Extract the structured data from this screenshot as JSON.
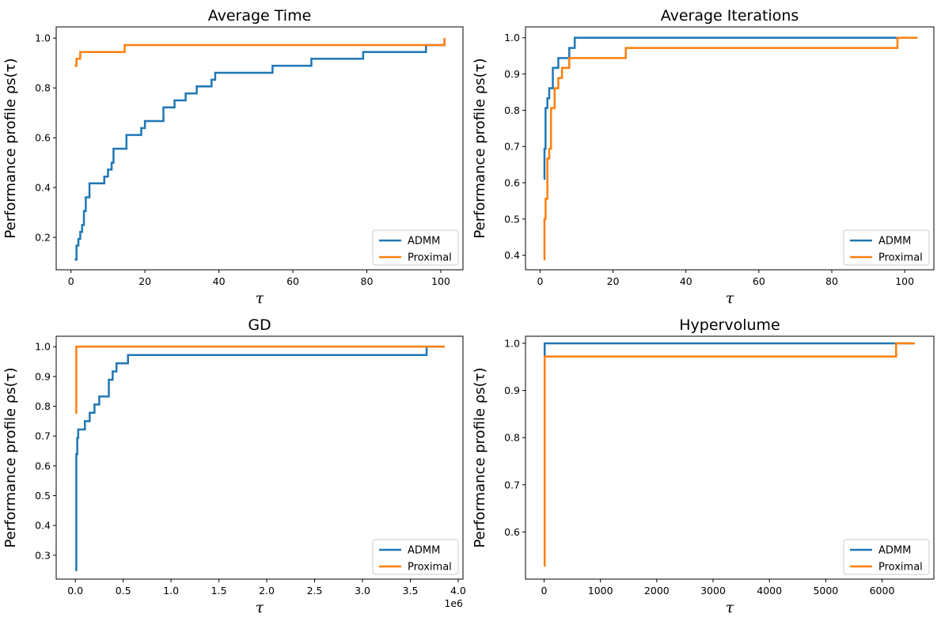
{
  "chart_data": [
    {
      "type": "line",
      "title": "Average Time",
      "ylabel": "Performance profile ρs(τ)",
      "xlabel": "τ",
      "xlim": [
        -4,
        106
      ],
      "ylim": [
        0.07,
        1.045
      ],
      "xticks": [
        0,
        20,
        40,
        60,
        80,
        100
      ],
      "xtick_labels": [
        "0",
        "20",
        "40",
        "60",
        "80",
        "100"
      ],
      "yticks": [
        0.2,
        0.4,
        0.6,
        0.8,
        1.0
      ],
      "ytick_labels": [
        "0.2",
        "0.4",
        "0.6",
        "0.8",
        "1.0"
      ],
      "offset_label": "",
      "grid": false,
      "legend": {
        "placement": "lower-right",
        "entries": [
          "ADMM",
          "Proximal"
        ]
      },
      "series": [
        {
          "name": "ADMM",
          "color": "#1f77b4",
          "step": true,
          "x": [
            1.0,
            1.5,
            2.0,
            2.5,
            3.0,
            3.5,
            4.0,
            5.0,
            9.0,
            10.0,
            11.0,
            11.5,
            15.0,
            19.0,
            20.0,
            25.0,
            28.0,
            31.0,
            34.0,
            38.0,
            39.0,
            54.5,
            65.0,
            79.0,
            96.0,
            101.0
          ],
          "y": [
            0.111,
            0.167,
            0.194,
            0.222,
            0.25,
            0.306,
            0.361,
            0.417,
            0.444,
            0.472,
            0.5,
            0.556,
            0.611,
            0.639,
            0.667,
            0.722,
            0.75,
            0.778,
            0.806,
            0.833,
            0.861,
            0.889,
            0.917,
            0.944,
            0.972,
            1.0
          ]
        },
        {
          "name": "Proximal",
          "color": "#ff7f0e",
          "step": true,
          "x": [
            1.0,
            1.5,
            2.5,
            14.5,
            101.0
          ],
          "y": [
            0.889,
            0.917,
            0.944,
            0.972,
            1.0
          ]
        }
      ]
    },
    {
      "type": "line",
      "title": "Average Iterations",
      "ylabel": "Performance profile ρs(τ)",
      "xlabel": "τ",
      "xlim": [
        -4,
        108
      ],
      "ylim": [
        0.36,
        1.03
      ],
      "xticks": [
        0,
        20,
        40,
        60,
        80,
        100
      ],
      "xtick_labels": [
        "0",
        "20",
        "40",
        "60",
        "80",
        "100"
      ],
      "yticks": [
        0.4,
        0.5,
        0.6,
        0.7,
        0.8,
        0.9,
        1.0
      ],
      "ytick_labels": [
        "0.4",
        "0.5",
        "0.6",
        "0.7",
        "0.8",
        "0.9",
        "1.0"
      ],
      "offset_label": "",
      "grid": false,
      "legend": {
        "placement": "lower-right",
        "entries": [
          "ADMM",
          "Proximal"
        ]
      },
      "series": [
        {
          "name": "ADMM",
          "color": "#1f77b4",
          "step": true,
          "x": [
            1.0,
            1.2,
            1.5,
            2.0,
            2.5,
            3.5,
            5.0,
            8.0,
            9.5,
            98.0,
            103.5
          ],
          "y": [
            0.611,
            0.694,
            0.806,
            0.833,
            0.861,
            0.917,
            0.944,
            0.972,
            1.0,
            1.0,
            1.0
          ]
        },
        {
          "name": "Proximal",
          "color": "#ff7f0e",
          "step": true,
          "x": [
            1.0,
            1.2,
            1.5,
            2.0,
            2.5,
            3.0,
            4.0,
            5.0,
            6.0,
            8.0,
            23.5,
            98.0,
            103.5
          ],
          "y": [
            0.389,
            0.5,
            0.556,
            0.667,
            0.694,
            0.806,
            0.861,
            0.889,
            0.917,
            0.944,
            0.972,
            1.0,
            1.0
          ]
        }
      ]
    },
    {
      "type": "line",
      "title": "GD",
      "ylabel": "Performance profile ρs(τ)",
      "xlabel": "τ",
      "xlim": [
        -200000,
        4050000
      ],
      "ylim": [
        0.22,
        1.035
      ],
      "xticks": [
        0,
        500000,
        1000000,
        1500000,
        2000000,
        2500000,
        3000000,
        3500000,
        4000000
      ],
      "xtick_labels": [
        "0.0",
        "0.5",
        "1.0",
        "1.5",
        "2.0",
        "2.5",
        "3.0",
        "3.5",
        "4.0"
      ],
      "yticks": [
        0.3,
        0.4,
        0.5,
        0.6,
        0.7,
        0.8,
        0.9,
        1.0
      ],
      "ytick_labels": [
        "0.3",
        "0.4",
        "0.5",
        "0.6",
        "0.7",
        "0.8",
        "0.9",
        "1.0"
      ],
      "offset_label": "1e6",
      "grid": false,
      "legend": {
        "placement": "lower-right",
        "entries": [
          "ADMM",
          "Proximal"
        ]
      },
      "series": [
        {
          "name": "ADMM",
          "color": "#1f77b4",
          "step": true,
          "x": [
            1,
            10000,
            20000,
            30000,
            100000,
            150000,
            200000,
            250000,
            350000,
            390000,
            430000,
            550000,
            3670000,
            3860000
          ],
          "y": [
            0.25,
            0.639,
            0.694,
            0.722,
            0.75,
            0.778,
            0.806,
            0.833,
            0.889,
            0.917,
            0.944,
            0.972,
            1.0,
            1.0
          ]
        },
        {
          "name": "Proximal",
          "color": "#ff7f0e",
          "step": true,
          "x": [
            1,
            10000,
            3860000
          ],
          "y": [
            0.778,
            1.0,
            1.0
          ]
        }
      ]
    },
    {
      "type": "line",
      "title": "Hypervolume",
      "ylabel": "Performance profile ρs(τ)",
      "xlabel": "τ",
      "xlim": [
        -330,
        6920
      ],
      "ylim": [
        0.5,
        1.015
      ],
      "xticks": [
        0,
        1000,
        2000,
        3000,
        4000,
        5000,
        6000
      ],
      "xtick_labels": [
        "0",
        "1000",
        "2000",
        "3000",
        "4000",
        "5000",
        "6000"
      ],
      "yticks": [
        0.6,
        0.7,
        0.8,
        0.9,
        1.0
      ],
      "ytick_labels": [
        "0.6",
        "0.7",
        "0.8",
        "0.9",
        "1.0"
      ],
      "offset_label": "",
      "grid": false,
      "legend": {
        "placement": "lower-right",
        "entries": [
          "ADMM",
          "Proximal"
        ]
      },
      "series": [
        {
          "name": "ADMM",
          "color": "#1f77b4",
          "step": true,
          "x": [
            1,
            10,
            6250,
            6580
          ],
          "y": [
            0.972,
            1.0,
            1.0,
            1.0
          ]
        },
        {
          "name": "Proximal",
          "color": "#ff7f0e",
          "step": true,
          "x": [
            1,
            10,
            6250,
            6580
          ],
          "y": [
            0.528,
            0.972,
            1.0,
            1.0
          ]
        }
      ]
    }
  ]
}
